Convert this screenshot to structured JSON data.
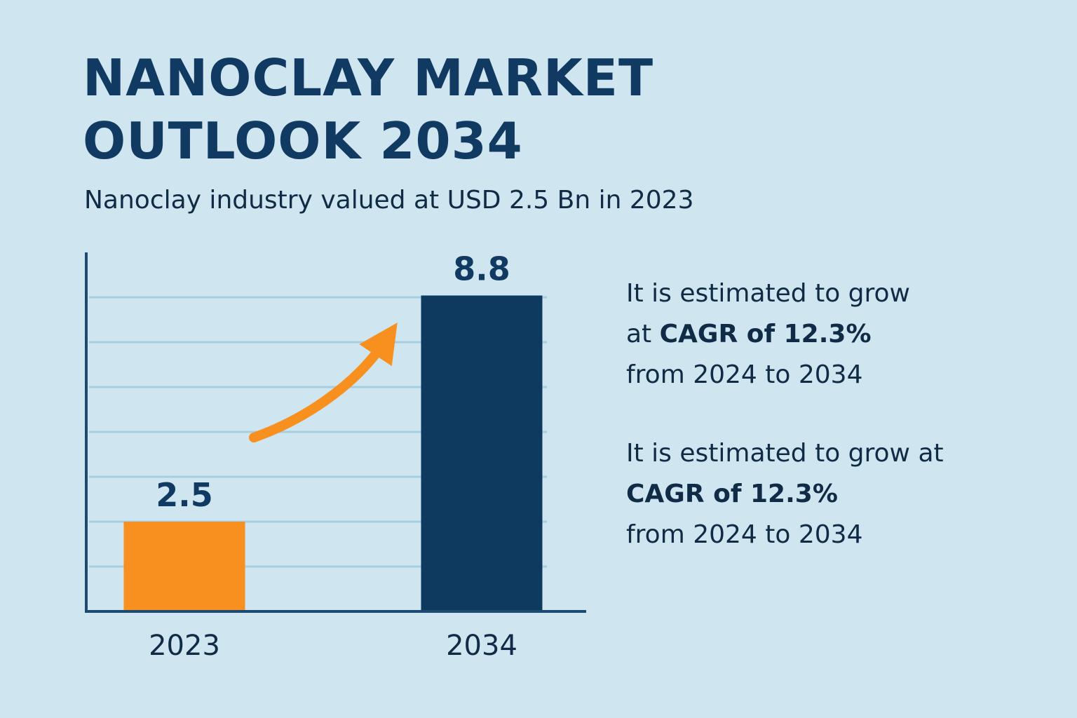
{
  "title_line1": "NANOCLAY MARKET",
  "title_line2": "OUTLOOK 2034",
  "subtitle": "Nanoclay industry valued at USD 2.5 Bn in 2023",
  "notes": [
    {
      "line1": "It is estimated to grow",
      "line2_prefix": "at ",
      "line2_bold": "CAGR of 12.3%",
      "line3": "from 2024 to 2034"
    },
    {
      "line1": "It is estimated to grow at",
      "line2_prefix": "",
      "line2_bold": "CAGR of 12.3%",
      "line3": "from 2024 to 2034"
    }
  ],
  "colors": {
    "background": "#cfe5f0",
    "bar_2023": "#f7901e",
    "bar_2034": "#0e3a5f",
    "arrow": "#f7901e",
    "gridline": "#a5cfe1",
    "axis": "#1c4a72",
    "text_dark": "#113a62"
  },
  "chart_data": {
    "type": "bar",
    "categories": [
      "2023",
      "2034"
    ],
    "values": [
      2.5,
      8.8
    ],
    "data_labels": [
      "2.5",
      "8.8"
    ],
    "bar_colors": [
      "#f7901e",
      "#0e3a5f"
    ],
    "title": "",
    "xlabel": "",
    "ylabel": "",
    "ylim": [
      0,
      10
    ],
    "grid": true,
    "gridline_values": [
      1.25,
      2.5,
      3.75,
      5,
      6.25,
      7.5,
      8.75
    ],
    "annotations": [
      "upward-trend-arrow"
    ],
    "legend": "none"
  }
}
